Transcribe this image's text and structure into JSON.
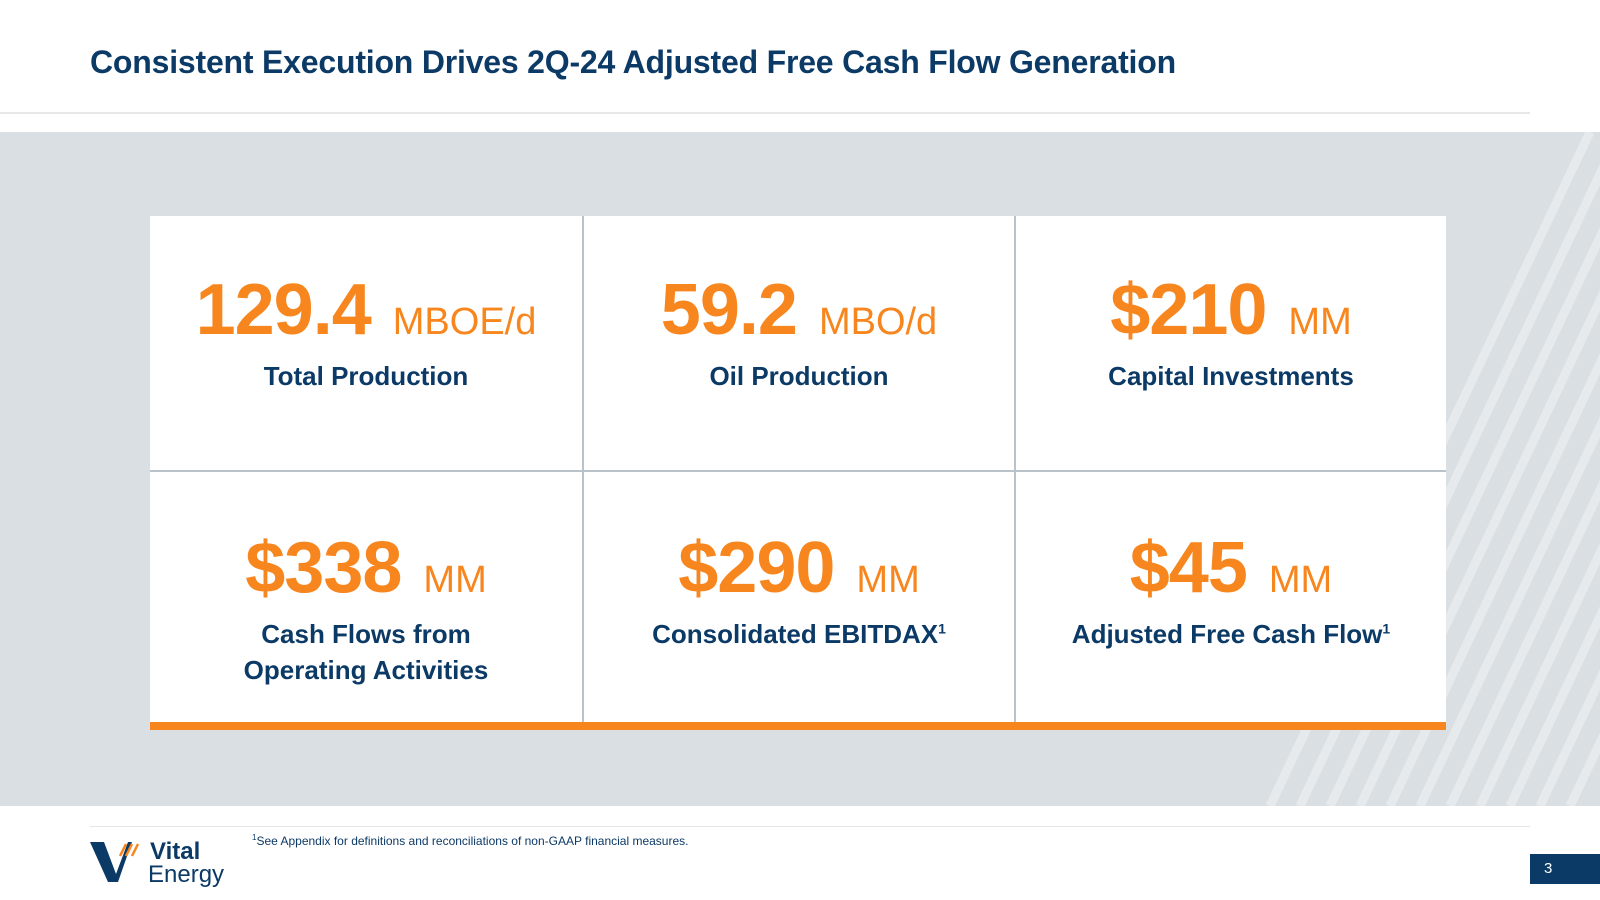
{
  "slide": {
    "title": "Consistent Execution Drives 2Q-24 Adjusted Free Cash Flow Generation",
    "metrics": [
      {
        "value": "129.4",
        "unit": "MBOE/d",
        "label": "Total Production",
        "label_line2": "",
        "sup": ""
      },
      {
        "value": "59.2",
        "unit": "MBO/d",
        "label": "Oil Production",
        "label_line2": "",
        "sup": ""
      },
      {
        "value": "$210",
        "unit": "MM",
        "label": "Capital Investments",
        "label_line2": "",
        "sup": ""
      },
      {
        "value": "$338",
        "unit": "MM",
        "label": "Cash Flows from",
        "label_line2": "Operating Activities",
        "sup": ""
      },
      {
        "value": "$290",
        "unit": "MM",
        "label": "Consolidated EBITDAX",
        "label_line2": "",
        "sup": "1"
      },
      {
        "value": "$45",
        "unit": "MM",
        "label": "Adjusted Free Cash Flow",
        "label_line2": "",
        "sup": "1"
      }
    ],
    "footnote": {
      "marker": "1",
      "text": "See Appendix for definitions and reconciliations of non-GAAP financial measures."
    },
    "logo": {
      "line1": "Vital",
      "line2": "Energy"
    },
    "page_number": "3"
  },
  "colors": {
    "navy": "#0c3a66",
    "orange": "#f7861e",
    "band_gray": "#d9dfe3",
    "divider": "#b9c2c9"
  }
}
